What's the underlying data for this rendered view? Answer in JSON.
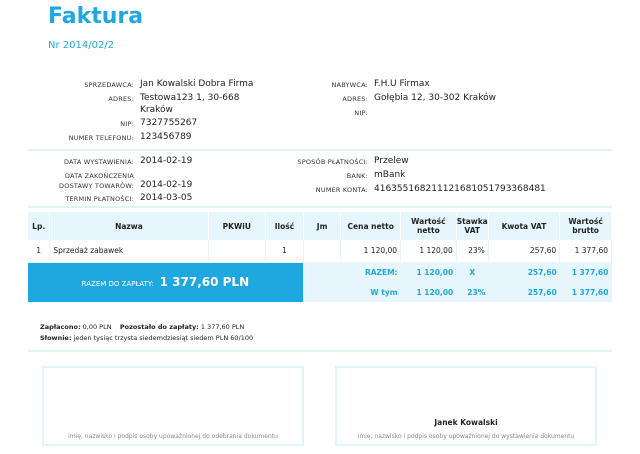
{
  "title": "Faktura",
  "number": "Nr 2014/02/2",
  "seller": {
    "l_name": "SPRZEDAWCA:",
    "name": "Jan Kowalski Dobra Firma",
    "l_addr": "ADRES:",
    "addr1": "Testowa123 1, 30-668",
    "addr2": "Kraków",
    "l_nip": "NIP:",
    "nip": "7327755267",
    "l_tel": "NUMER TELEFONU:",
    "tel": "123456789"
  },
  "buyer": {
    "l_name": "NABYWCA:",
    "name": "F.H.U Firmax",
    "l_addr": "ADRES:",
    "addr": "Gołębia 12, 30-302 Kraków",
    "l_nip": "NIP:"
  },
  "dates": {
    "l_issue": "DATA WYSTAWIENIA:",
    "issue": "2014-02-19",
    "l_deliv1": "DATA ZAKOŃCZENIA",
    "l_deliv2": "DOSTAWY TOWARÓW:",
    "deliv": "2014-02-19",
    "l_due": "TERMIN PŁATNOŚCI:",
    "due": "2014-03-05"
  },
  "payment": {
    "l_method": "SPOSÓB PŁATNOŚCI:",
    "method": "Przelew",
    "l_bank": "BANK:",
    "bank": "mBank",
    "l_acc": "NUMER KONTA:",
    "acc": "41635516821112168105179336848​1"
  },
  "table": {
    "headers": [
      "Lp.",
      "Nazwa",
      "PKWiU",
      "Ilość",
      "Jm",
      "Cena netto",
      "Wartość netto",
      "Stawka VAT",
      "Kwota VAT",
      "Wartość brutto"
    ],
    "rows": [
      [
        "1",
        "Sprzedaż zabawek",
        "",
        "1",
        "",
        "1 120,00",
        "1 120,00",
        "23%",
        "257,60",
        "1 377,60"
      ]
    ],
    "razem": [
      "RAZEM:",
      "1 120,00",
      "X",
      "257,60",
      "1 377,60"
    ],
    "wtym": [
      "W tym",
      "1 120,00",
      "23%",
      "257,60",
      "1 377,60"
    ]
  },
  "total": {
    "label": "RAZEM DO ZAPŁATY:",
    "value": "1 377,60 PLN"
  },
  "footer": {
    "l_paid": "Zapłacono:",
    "paid": "0,00 PLN",
    "l_left": "Pozostało do zapłaty:",
    "left": "1 377,60 PLN",
    "l_words": "Słownie:",
    "words": "jeden tysiąc trzysta siedemdziesiąt siedem PLN 60/100"
  },
  "signatures": {
    "receiver": "imię, nazwisko i podpis osoby upoważnionej do odebrania dokumentu",
    "issuer_name": "Janek Kowalski",
    "issuer": "imię, nazwisko i podpis osoby upoważnionej do wystawienia dokumentu"
  }
}
